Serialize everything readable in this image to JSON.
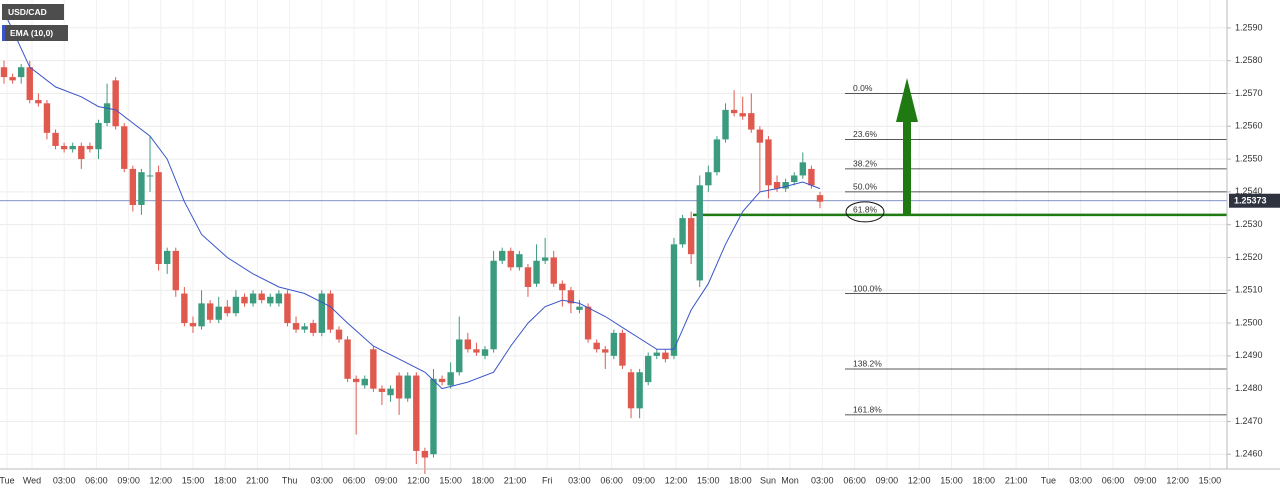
{
  "chart_data": {
    "type": "candlestick",
    "series": [
      {
        "name": "USD/CAD",
        "up_color": "#3b9b7f",
        "down_color": "#e0594f",
        "open": [
          1.2578,
          1.2575,
          1.2575,
          1.2578,
          1.2568,
          1.2567,
          1.2558,
          1.2554,
          1.2553,
          1.2554,
          1.2554,
          1.2553,
          1.2561,
          1.2574,
          1.256,
          1.2547,
          1.2536,
          1.2545,
          1.2546,
          1.2518,
          1.2522,
          1.2509,
          1.25,
          1.2499,
          1.2506,
          1.2501,
          1.2505,
          1.2503,
          1.2508,
          1.2506,
          1.2509,
          1.2506,
          1.2506,
          1.2509,
          1.25,
          1.2498,
          1.25,
          1.2497,
          1.2509,
          1.2498,
          1.2495,
          1.2483,
          1.2481,
          1.2492,
          1.248,
          1.2478,
          1.2484,
          1.2477,
          1.2484,
          1.2461,
          1.246,
          1.2483,
          1.2481,
          1.2485,
          1.2495,
          1.2492,
          1.249,
          1.2492,
          1.2519,
          1.2522,
          1.2517,
          1.2517,
          1.2512,
          1.2519,
          1.252,
          1.2512,
          1.251,
          1.2504,
          1.2505,
          1.2494,
          1.2492,
          1.249,
          1.2497,
          1.2485,
          1.2474,
          1.2482,
          1.249,
          1.2491,
          1.249,
          1.2524,
          1.2532,
          1.2513,
          1.2542,
          1.2546,
          1.2556,
          1.2565,
          1.2564,
          1.2564,
          1.2559,
          1.2556,
          1.2543,
          1.2541,
          1.2543,
          1.2545,
          1.2547,
          1.2539
        ],
        "high": [
          1.258,
          1.2576,
          1.2579,
          1.258,
          1.257,
          1.2568,
          1.2559,
          1.2555,
          1.2555,
          1.2555,
          1.2555,
          1.2562,
          1.2573,
          1.2575,
          1.2561,
          1.2548,
          1.2547,
          1.2557,
          1.2548,
          1.2523,
          1.2523,
          1.2511,
          1.2502,
          1.251,
          1.2507,
          1.2508,
          1.2507,
          1.251,
          1.2509,
          1.251,
          1.251,
          1.2509,
          1.251,
          1.251,
          1.2502,
          1.25,
          1.2501,
          1.251,
          1.251,
          1.2499,
          1.2496,
          1.2484,
          1.2484,
          1.2493,
          1.2481,
          1.2481,
          1.2485,
          1.2485,
          1.2485,
          1.2462,
          1.2486,
          1.2484,
          1.2488,
          1.2502,
          1.2497,
          1.2494,
          1.2493,
          1.2522,
          1.2523,
          1.2523,
          1.2522,
          1.2518,
          1.2524,
          1.2526,
          1.2522,
          1.2513,
          1.2511,
          1.2507,
          1.2506,
          1.2495,
          1.2493,
          1.2498,
          1.2498,
          1.2486,
          1.2486,
          1.2491,
          1.2492,
          1.2492,
          1.2526,
          1.2533,
          1.2534,
          1.2545,
          1.2548,
          1.2557,
          1.2567,
          1.2571,
          1.2569,
          1.257,
          1.256,
          1.2557,
          1.2545,
          1.2544,
          1.2546,
          1.2552,
          1.2548,
          1.254
        ],
        "low": [
          1.2573,
          1.2573,
          1.2573,
          1.2567,
          1.2566,
          1.2556,
          1.2553,
          1.2552,
          1.2552,
          1.2547,
          1.2552,
          1.255,
          1.256,
          1.2559,
          1.2546,
          1.2534,
          1.2533,
          1.254,
          1.2516,
          1.2515,
          1.2508,
          1.2499,
          1.2497,
          1.2498,
          1.25,
          1.25,
          1.2502,
          1.2502,
          1.2505,
          1.2505,
          1.2506,
          1.2505,
          1.2505,
          1.2499,
          1.2497,
          1.2497,
          1.2496,
          1.2496,
          1.2497,
          1.2494,
          1.2482,
          1.2466,
          1.248,
          1.2479,
          1.2475,
          1.2476,
          1.2472,
          1.2476,
          1.2457,
          1.2454,
          1.2459,
          1.2481,
          1.248,
          1.2484,
          1.2491,
          1.249,
          1.2489,
          1.2491,
          1.2518,
          1.2516,
          1.2516,
          1.2508,
          1.2511,
          1.2518,
          1.2511,
          1.2505,
          1.2503,
          1.2503,
          1.2494,
          1.2491,
          1.2486,
          1.2489,
          1.2486,
          1.2471,
          1.2471,
          1.2481,
          1.2489,
          1.2488,
          1.2489,
          1.2523,
          1.2518,
          1.2511,
          1.254,
          1.2545,
          1.2555,
          1.2563,
          1.2562,
          1.2558,
          1.254,
          1.2538,
          1.254,
          1.254,
          1.2542,
          1.2544,
          1.2541,
          1.2535
        ],
        "close": [
          1.2575,
          1.2574,
          1.2578,
          1.2568,
          1.2567,
          1.2558,
          1.2554,
          1.2553,
          1.2554,
          1.255,
          1.2553,
          1.2561,
          1.2567,
          1.256,
          1.2547,
          1.2536,
          1.2546,
          1.2545,
          1.2518,
          1.2522,
          1.251,
          1.25,
          1.2499,
          1.2506,
          1.2501,
          1.2505,
          1.2503,
          1.2508,
          1.2506,
          1.2509,
          1.2507,
          1.2508,
          1.2509,
          1.25,
          1.2498,
          1.2499,
          1.2497,
          1.2509,
          1.2498,
          1.2495,
          1.2483,
          1.2482,
          1.2483,
          1.248,
          1.2479,
          1.248,
          1.2477,
          1.2484,
          1.2461,
          1.2459,
          1.2483,
          1.2482,
          1.2485,
          1.2495,
          1.2492,
          1.2491,
          1.2492,
          1.2519,
          1.2522,
          1.2517,
          1.2521,
          1.2511,
          1.2519,
          1.252,
          1.2512,
          1.251,
          1.2506,
          1.2505,
          1.2495,
          1.2492,
          1.2491,
          1.2497,
          1.2487,
          1.2474,
          1.2485,
          1.249,
          1.2491,
          1.2489,
          1.2524,
          1.2532,
          1.2521,
          1.2542,
          1.2546,
          1.2556,
          1.2565,
          1.2564,
          1.2563,
          1.2559,
          1.2555,
          1.2542,
          1.2541,
          1.2543,
          1.2545,
          1.2549,
          1.2542,
          1.2537
        ]
      }
    ],
    "ema": {
      "name": "EMA (10,0)",
      "color": "#3a55c8",
      "x": [
        0,
        3,
        6,
        9,
        11,
        13,
        15,
        17,
        19,
        21,
        23,
        26,
        29,
        32,
        35,
        38,
        40,
        43,
        46,
        49,
        51,
        54,
        57,
        59,
        61,
        63,
        65,
        67,
        70,
        73,
        76,
        78,
        80,
        82,
        84,
        86,
        88,
        90,
        93,
        95
      ],
      "values": [
        1.2595,
        1.2578,
        1.2572,
        1.2569,
        1.2566,
        1.2565,
        1.2561,
        1.2557,
        1.255,
        1.2537,
        1.2527,
        1.252,
        1.2515,
        1.2511,
        1.2509,
        1.2505,
        1.25,
        1.2493,
        1.2489,
        1.2485,
        1.248,
        1.2482,
        1.2485,
        1.2493,
        1.25,
        1.2505,
        1.2507,
        1.2506,
        1.2502,
        1.2497,
        1.2492,
        1.2492,
        1.2504,
        1.2512,
        1.2524,
        1.2534,
        1.254,
        1.2541,
        1.2543,
        1.2541
      ]
    },
    "current_price": 1.25373,
    "ylim": [
      1.24555,
      1.25985
    ],
    "yticks": [
      {
        "value": 1.259,
        "label": "1.2590"
      },
      {
        "value": 1.258,
        "label": "1.2580"
      },
      {
        "value": 1.257,
        "label": "1.2570"
      },
      {
        "value": 1.256,
        "label": "1.2560"
      },
      {
        "value": 1.255,
        "label": "1.2550"
      },
      {
        "value": 1.254,
        "label": "1.2540"
      },
      {
        "value": 1.253,
        "label": "1.2530"
      },
      {
        "value": 1.252,
        "label": "1.2520"
      },
      {
        "value": 1.251,
        "label": "1.2510"
      },
      {
        "value": 1.25,
        "label": "1.2500"
      },
      {
        "value": 1.249,
        "label": "1.2490"
      },
      {
        "value": 1.248,
        "label": "1.2480"
      },
      {
        "value": 1.247,
        "label": "1.2470"
      },
      {
        "value": 1.246,
        "label": "1.2460"
      }
    ],
    "xlabels": [
      "Tue",
      "Wed",
      "03:00",
      "06:00",
      "09:00",
      "12:00",
      "15:00",
      "18:00",
      "21:00",
      "Thu",
      "03:00",
      "06:00",
      "09:00",
      "12:00",
      "15:00",
      "18:00",
      "21:00",
      "Fri",
      "03:00",
      "06:00",
      "09:00",
      "12:00",
      "15:00",
      "18:00",
      "Sun",
      "Mon",
      "03:00",
      "06:00",
      "09:00",
      "12:00",
      "15:00",
      "18:00",
      "21:00",
      "Tue",
      "03:00",
      "06:00",
      "09:00",
      "12:00",
      "15:00"
    ],
    "fib_levels": [
      {
        "label": "0.0%",
        "value": 1.257
      },
      {
        "label": "23.6%",
        "value": 1.2556
      },
      {
        "label": "38.2%",
        "value": 1.2547
      },
      {
        "label": "50.0%",
        "value": 1.254
      },
      {
        "label": "61.8%",
        "value": 1.2533
      },
      {
        "label": "100.0%",
        "value": 1.2509
      },
      {
        "label": "138.2%",
        "value": 1.2486
      },
      {
        "label": "161.8%",
        "value": 1.2472
      }
    ],
    "highlight_color": "#1f7a12",
    "grid": true
  }
}
